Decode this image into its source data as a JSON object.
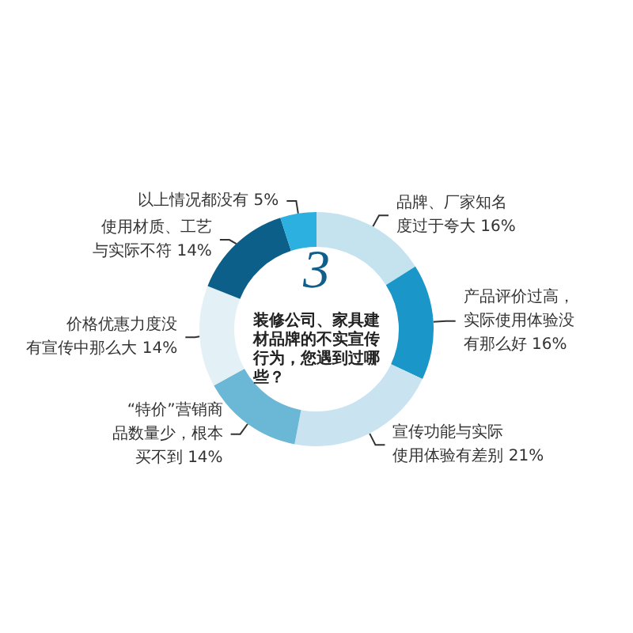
{
  "chart_data": {
    "type": "donut",
    "title": "装修公司、家具建材品牌的不实宣传行为，您遇到过哪些？",
    "annotations": [
      "3"
    ],
    "categories": [
      "品牌、厂家知名度过于夸大",
      "产品评价过高，实际使用体验没有那么好",
      "宣传功能与实际使用体验有差别",
      "“特价”营销商品数量少，根本买不到",
      "价格优惠力度没有宣传中那么大",
      "使用材质、工艺与实际不符",
      "以上情况都没有"
    ],
    "values": [
      16,
      16,
      21,
      14,
      14,
      14,
      5
    ],
    "value_labels": [
      "16%",
      "16%",
      "21%",
      "14%",
      "14%",
      "14%",
      "5%"
    ],
    "colors": [
      "#c5e3ef",
      "#1a96c8",
      "#c9e4f0",
      "#6bb8d6",
      "#e3f0f6",
      "#0b5f88",
      "#2bb0e0"
    ],
    "legend": false
  }
}
